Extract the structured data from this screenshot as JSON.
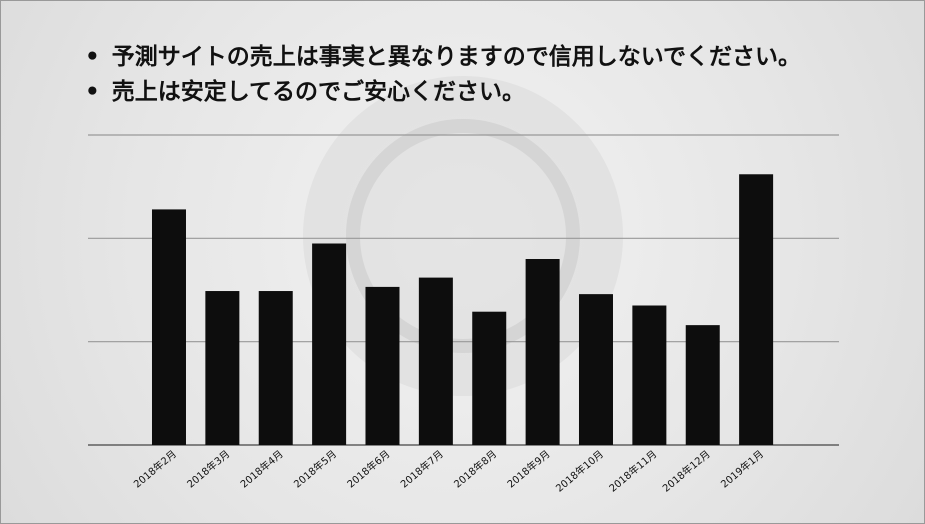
{
  "bullets": [
    "予測サイトの売上は事実と異なりますので信用しないでください。",
    "売上は安定してるのでご安心ください。"
  ],
  "chart_data": {
    "type": "bar",
    "categories": [
      "2018年2月",
      "2018年3月",
      "2018年4月",
      "2018年5月",
      "2018年6月",
      "2018年7月",
      "2018年8月",
      "2018年9月",
      "2018年10月",
      "2018年11月",
      "2018年12月",
      "2019年1月"
    ],
    "values": [
      2.28,
      1.49,
      1.49,
      1.95,
      1.53,
      1.62,
      1.29,
      1.8,
      1.46,
      1.35,
      1.16,
      2.62
    ],
    "color": "#0d0d0d",
    "ylim": [
      0,
      3
    ],
    "yticks": [
      0,
      1,
      2,
      3
    ],
    "grid": true
  }
}
